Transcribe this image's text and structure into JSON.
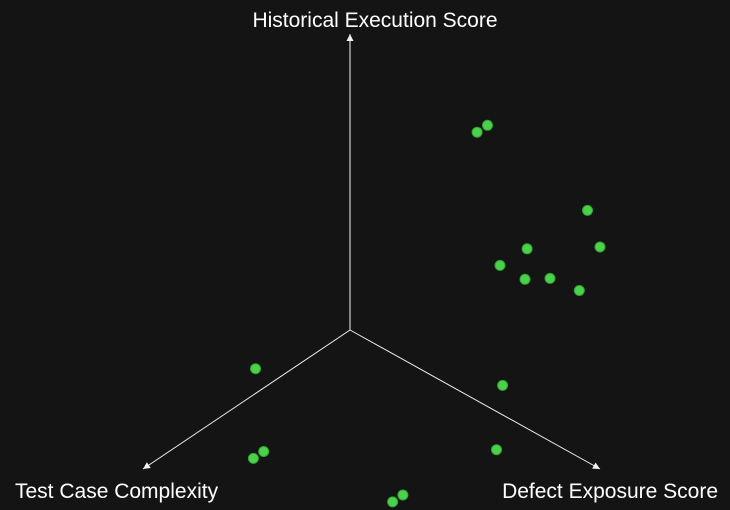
{
  "colors": {
    "background": "#141414",
    "axis": "#f2f2f2",
    "point": "#4cd14c"
  },
  "chart_data": {
    "type": "scatter",
    "projection": "3d-axes",
    "axes": {
      "x": {
        "label": "Test Case Complexity"
      },
      "y": {
        "label": "Defect Exposure Score"
      },
      "z": {
        "label": "Historical Execution Score"
      }
    },
    "grid": false,
    "legend": "none",
    "points": [
      {
        "x": 0.0,
        "y": 0.6,
        "z": 0.5
      },
      {
        "x": 0.0,
        "y": 0.7,
        "z": 0.5
      },
      {
        "x": 0.0,
        "y": 0.55,
        "z": 0.95
      },
      {
        "x": 0.05,
        "y": 0.55,
        "z": 0.95
      },
      {
        "x": 0.05,
        "y": 0.75,
        "z": 0.65
      },
      {
        "x": 0.0,
        "y": 0.8,
        "z": 0.55
      },
      {
        "x": 0.9,
        "y": 0.4,
        "z": 0.2
      },
      {
        "x": 0.95,
        "y": 0.4,
        "z": 0.2
      },
      {
        "x": 0.7,
        "y": 0.75,
        "z": 0.1
      },
      {
        "x": 0.65,
        "y": 0.75,
        "z": 0.1
      },
      {
        "x": 1.0,
        "y": 0.45,
        "z": 0.55
      },
      {
        "x": 0.35,
        "y": 0.9,
        "z": 0.4
      },
      {
        "x": 0.0,
        "y": 1.0,
        "z": 0.75
      },
      {
        "x": 0.1,
        "y": 1.0,
        "z": 0.65
      },
      {
        "x": 0.5,
        "y": 1.0,
        "z": 0.3
      },
      {
        "x": 0.0,
        "y": 0.95,
        "z": 0.85
      }
    ]
  }
}
